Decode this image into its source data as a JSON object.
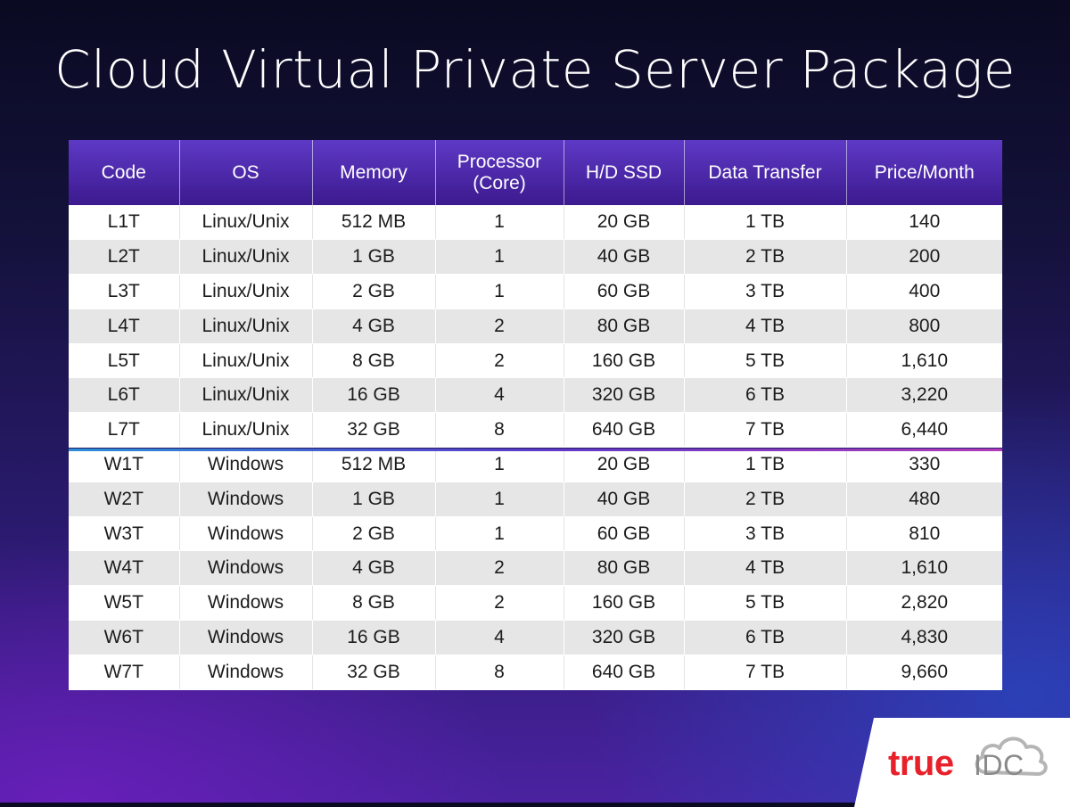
{
  "title": "Cloud Virtual Private Server Package",
  "table": {
    "headers": [
      "Code",
      "OS",
      "Memory",
      "Processor (Core)",
      "H/D SSD",
      "Data Transfer",
      "Price/Month"
    ],
    "rows": [
      [
        "L1T",
        "Linux/Unix",
        "512 MB",
        "1",
        "20 GB",
        "1 TB",
        "140"
      ],
      [
        "L2T",
        "Linux/Unix",
        "1 GB",
        "1",
        "40 GB",
        "2 TB",
        "200"
      ],
      [
        "L3T",
        "Linux/Unix",
        "2 GB",
        "1",
        "60 GB",
        "3 TB",
        "400"
      ],
      [
        "L4T",
        "Linux/Unix",
        "4 GB",
        "2",
        "80 GB",
        "4 TB",
        "800"
      ],
      [
        "L5T",
        "Linux/Unix",
        "8 GB",
        "2",
        "160 GB",
        "5 TB",
        "1,610"
      ],
      [
        "L6T",
        "Linux/Unix",
        "16 GB",
        "4",
        "320 GB",
        "6 TB",
        "3,220"
      ],
      [
        "L7T",
        "Linux/Unix",
        "32 GB",
        "8",
        "640 GB",
        "7 TB",
        "6,440"
      ],
      [
        "W1T",
        "Windows",
        "512 MB",
        "1",
        "20 GB",
        "1 TB",
        "330"
      ],
      [
        "W2T",
        "Windows",
        "1 GB",
        "1",
        "40 GB",
        "2 TB",
        "480"
      ],
      [
        "W3T",
        "Windows",
        "2 GB",
        "1",
        "60 GB",
        "3 TB",
        "810"
      ],
      [
        "W4T",
        "Windows",
        "4 GB",
        "2",
        "80 GB",
        "4 TB",
        "1,610"
      ],
      [
        "W5T",
        "Windows",
        "8 GB",
        "2",
        "160 GB",
        "5 TB",
        "2,820"
      ],
      [
        "W6T",
        "Windows",
        "16 GB",
        "4",
        "320 GB",
        "6 TB",
        "4,830"
      ],
      [
        "W7T",
        "Windows",
        "32 GB",
        "8",
        "640 GB",
        "7 TB",
        "9,660"
      ]
    ]
  },
  "logo": {
    "brand": "true",
    "product": "IDC",
    "icon": "cloud-icon"
  },
  "colors": {
    "header_purple": "#4a28a8",
    "logo_red": "#e8202a",
    "logo_gray": "#8a8a8a",
    "separator_blue": "#2a8fd8",
    "separator_magenta": "#b23ab8"
  }
}
